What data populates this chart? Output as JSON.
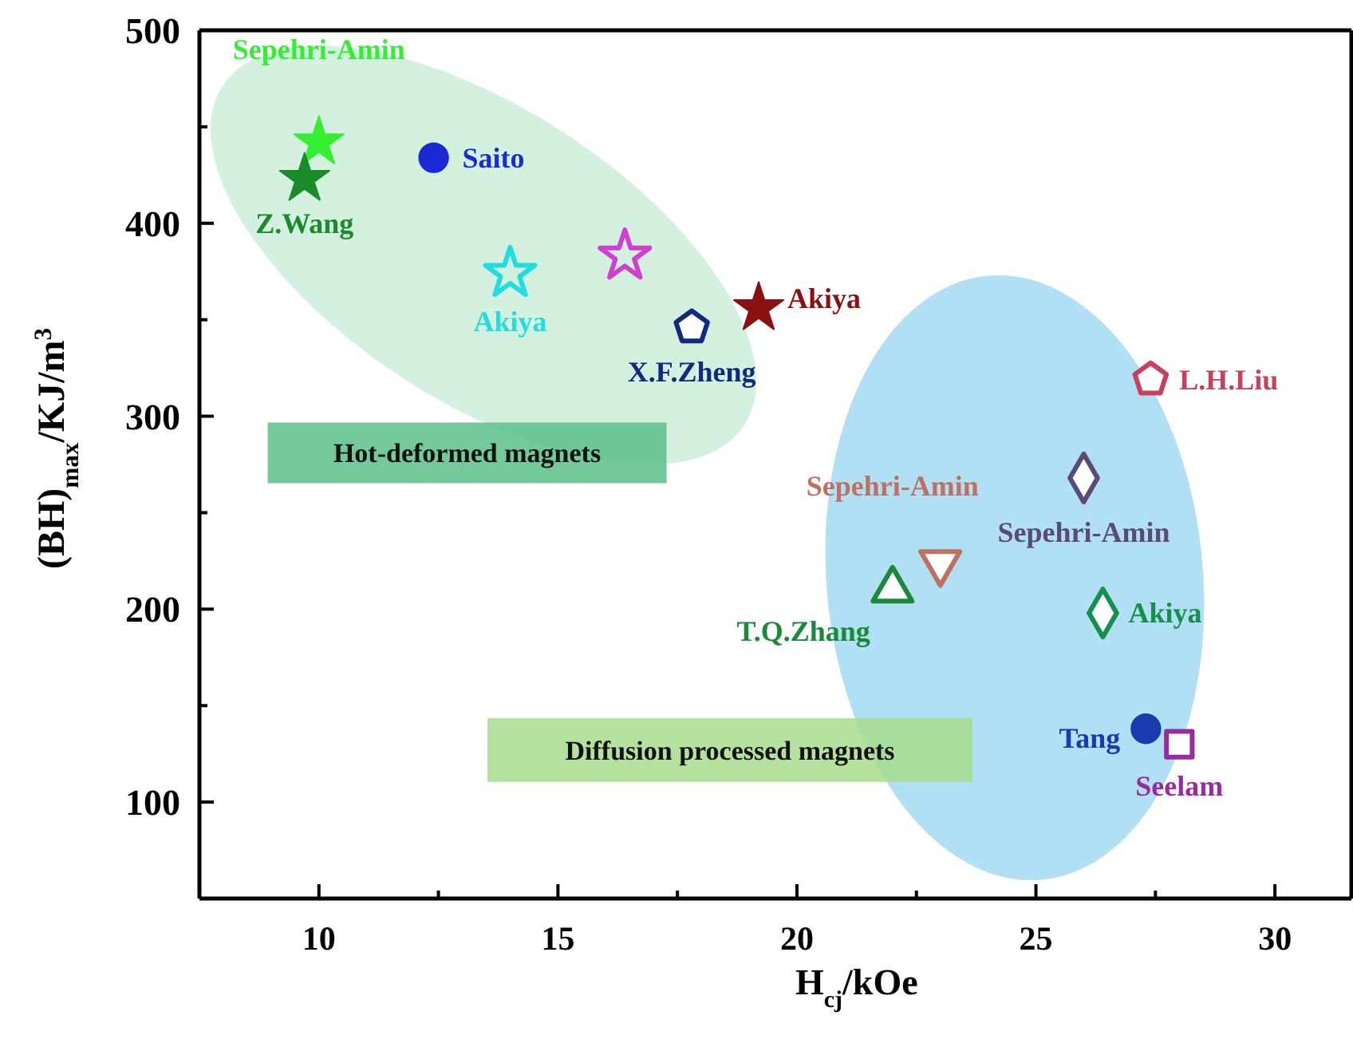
{
  "chart_data": {
    "type": "scatter",
    "xlabel": "H$_{cj}$/kOe",
    "ylabel": "(BH)$_{max}$/KJ/m$^{3}$",
    "xlim": [
      7.5,
      31.6
    ],
    "ylim": [
      50,
      500
    ],
    "xticks": [
      10,
      {
        "value": 12.5,
        "label": null
      },
      15,
      {
        "value": 17.5,
        "label": null
      },
      20,
      {
        "value": 22.5,
        "label": null
      },
      25,
      {
        "value": 27.5,
        "label": null
      },
      30
    ],
    "yticks": [
      100,
      {
        "value": 150,
        "label": null
      },
      200,
      {
        "value": 250,
        "label": null
      },
      300,
      {
        "value": 350,
        "label": null
      },
      400,
      {
        "value": 450,
        "label": null
      },
      500
    ],
    "grid": false,
    "annotations": [
      "Hot-deformed magnets",
      "Diffusion processed magnets"
    ],
    "series": [
      {
        "name": "Sepehri-Amin",
        "color": "#33ee33",
        "marker": "star",
        "x": [
          10.0
        ],
        "values": [
          442
        ]
      },
      {
        "name": "Z.Wang",
        "color": "#1a8a2a",
        "marker": "star",
        "x": [
          9.7
        ],
        "values": [
          423
        ]
      },
      {
        "name": "Saito",
        "color": "#1a2bd6",
        "marker": "circle",
        "x": [
          12.4
        ],
        "values": [
          434
        ]
      },
      {
        "name": "Akiya",
        "color": "#22dddd",
        "marker": "star",
        "x": [
          14.0
        ],
        "values": [
          374
        ]
      },
      {
        "color": "#d040d0",
        "marker": "star",
        "x": [
          16.4
        ],
        "values": [
          383
        ]
      },
      {
        "name": "X.F.Zheng",
        "color": "#102a80",
        "x": [
          17.8
        ],
        "values": [
          346
        ]
      },
      {
        "name": "Akiya",
        "color": "#8b1010",
        "marker": "star",
        "x": [
          19.2
        ],
        "values": [
          356
        ]
      },
      {
        "name": "L.H.Liu",
        "color": "#c8405a",
        "x": [
          27.4
        ],
        "values": [
          319
        ]
      },
      {
        "name": "Sepehri-Amin",
        "color": "#5a4a7a",
        "marker": "diamond",
        "x": [
          26.0
        ],
        "values": [
          268
        ]
      },
      {
        "name": "Sepehri-Amin",
        "color": "#c07060",
        "marker": "triangle-down",
        "x": [
          23.0
        ],
        "values": [
          224
        ]
      },
      {
        "name": "T.Q.Zhang",
        "color": "#1a8a3a",
        "marker": "triangle",
        "x": [
          22.0
        ],
        "values": [
          210
        ]
      },
      {
        "name": "Akiya",
        "color": "#14904a",
        "marker": "diamond",
        "x": [
          26.4
        ],
        "values": [
          198
        ]
      },
      {
        "name": "Tang",
        "color": "#1a3ab0",
        "marker": "circle",
        "x": [
          27.3
        ],
        "values": [
          138
        ]
      },
      {
        "name": "Seelam",
        "color": "#9a2aa0",
        "marker": "square",
        "x": [
          28.0
        ],
        "values": [
          130
        ]
      }
    ]
  }
}
